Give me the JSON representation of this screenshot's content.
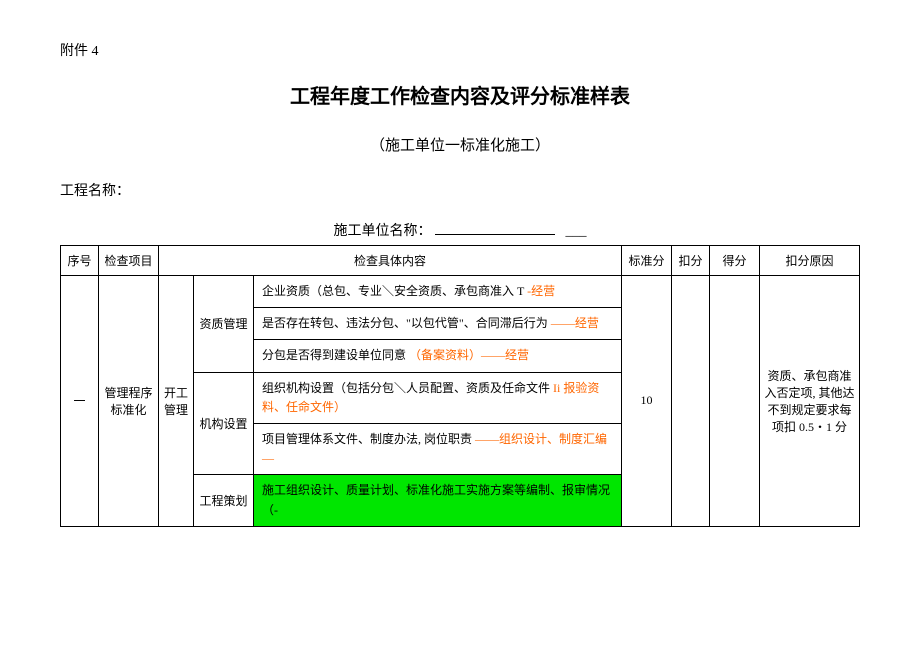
{
  "header": {
    "attachment": "附件 4",
    "title": "工程年度工作检查内容及评分标准样表",
    "subtitle": "（施工单位一标准化施工）",
    "projectNameLabel": "工程名称：",
    "unitNameLabel": "施工单位名称："
  },
  "tableHeaders": {
    "seq": "序号",
    "item": "检查项目",
    "content": "检查具体内容",
    "stdScore": "标准分",
    "deduct": "扣分",
    "score": "得分",
    "reason": "扣分原因"
  },
  "row1": {
    "seq": "一",
    "item": "管理程序标准化",
    "sub1": "开工管理",
    "cat1": "资质管理",
    "cat2": "机构设置",
    "cat3": "工程策划",
    "c1a_text": "企业资质（总包、专业＼安全资质、承包商准入 T",
    "c1a_orange": "-经营",
    "c1b_text1": "是否存在转包、违法分包、\"以包代管\"、合同滞后行为",
    "c1b_orange": "——经营",
    "c1c_text": "分包是否得到建设单位同意",
    "c1c_orange": "（备案资料）——经营",
    "c2a_text": "组织机构设置（包括分包＼人员配置、资质及任命文件",
    "c2a_orange": " Ii 报验资料、任命文件）",
    "c2b_text": "项目管理体系文件、制度办法, 岗位职责",
    "c2b_orange": "——组织设计、制度汇编—",
    "c3a_text": "施工组织设计、质量计划、标准化施工实施方案等编制、报审情况（-",
    "stdScore": "10",
    "reason": "资质、承包商准入否定项, 其他达不到规定要求每项扣 0.5・1 分"
  },
  "colors": {
    "orange": "#ff6600",
    "highlight_green": "#00e600",
    "border": "#000000",
    "background": "#ffffff"
  }
}
